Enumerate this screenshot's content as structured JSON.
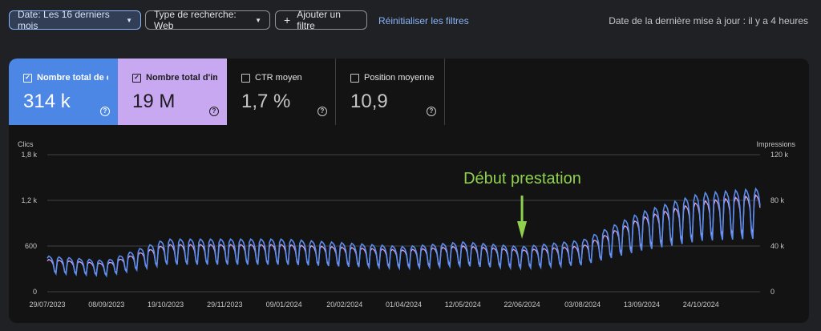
{
  "filters": {
    "date_chip": "Date: Les 16 derniers mois",
    "search_type_chip": "Type de recherche: Web",
    "add_filter": "Ajouter un filtre",
    "reset": "Réinitialiser les filtres",
    "last_update": "Date de la dernière mise à jour : il y a 4 heures"
  },
  "metrics": [
    {
      "label": "Nombre total de c...",
      "value": "314 k",
      "checked": true,
      "color": "#4c87e6"
    },
    {
      "label": "Nombre total d'im...",
      "value": "19 M",
      "checked": true,
      "color": "#c8a8f0"
    },
    {
      "label": "CTR moyen",
      "value": "1,7 %",
      "checked": false
    },
    {
      "label": "Position moyenne",
      "value": "10,9",
      "checked": false
    }
  ],
  "help_glyph": "?",
  "check_glyph": "✓",
  "chart_data": {
    "type": "line",
    "left_axis_title": "Clics",
    "right_axis_title": "Impressions",
    "left_ylim": [
      0,
      1800
    ],
    "right_ylim": [
      0,
      120000
    ],
    "left_ticks": [
      "0",
      "600",
      "1,2 k",
      "1,8 k"
    ],
    "right_ticks": [
      "0",
      "40 k",
      "80 k",
      "120 k"
    ],
    "x_ticks": [
      "29/07/2023",
      "08/09/2023",
      "19/10/2023",
      "29/11/2023",
      "09/01/2024",
      "20/02/2024",
      "01/04/2024",
      "12/05/2024",
      "22/06/2024",
      "03/08/2024",
      "13/09/2024",
      "24/10/2024"
    ],
    "annotation": {
      "text": "Début prestation",
      "at": "22/06/2024",
      "color": "#8fd14f"
    },
    "series": [
      {
        "name": "Clics",
        "color": "#5b8def",
        "axis": "left",
        "x": [
          "29/07/2023",
          "08/09/2023",
          "19/10/2023",
          "29/11/2023",
          "09/01/2024",
          "20/02/2024",
          "01/04/2024",
          "12/05/2024",
          "22/06/2024",
          "03/08/2024",
          "13/09/2024",
          "24/10/2024",
          "04/12/2024"
        ],
        "values": [
          380,
          330,
          560,
          560,
          560,
          520,
          480,
          530,
          480,
          550,
          850,
          1050,
          1100
        ]
      },
      {
        "name": "Impressions",
        "color": "#d8a6f2",
        "axis": "right",
        "x": [
          "29/07/2023",
          "08/09/2023",
          "19/10/2023",
          "29/11/2023",
          "09/01/2024",
          "20/02/2024",
          "01/04/2024",
          "12/05/2024",
          "22/06/2024",
          "03/08/2024",
          "13/09/2024",
          "24/10/2024",
          "04/12/2024"
        ],
        "values": [
          24000,
          21000,
          35000,
          35000,
          35000,
          33000,
          31000,
          34000,
          31000,
          34000,
          55000,
          67000,
          72000
        ]
      }
    ]
  }
}
